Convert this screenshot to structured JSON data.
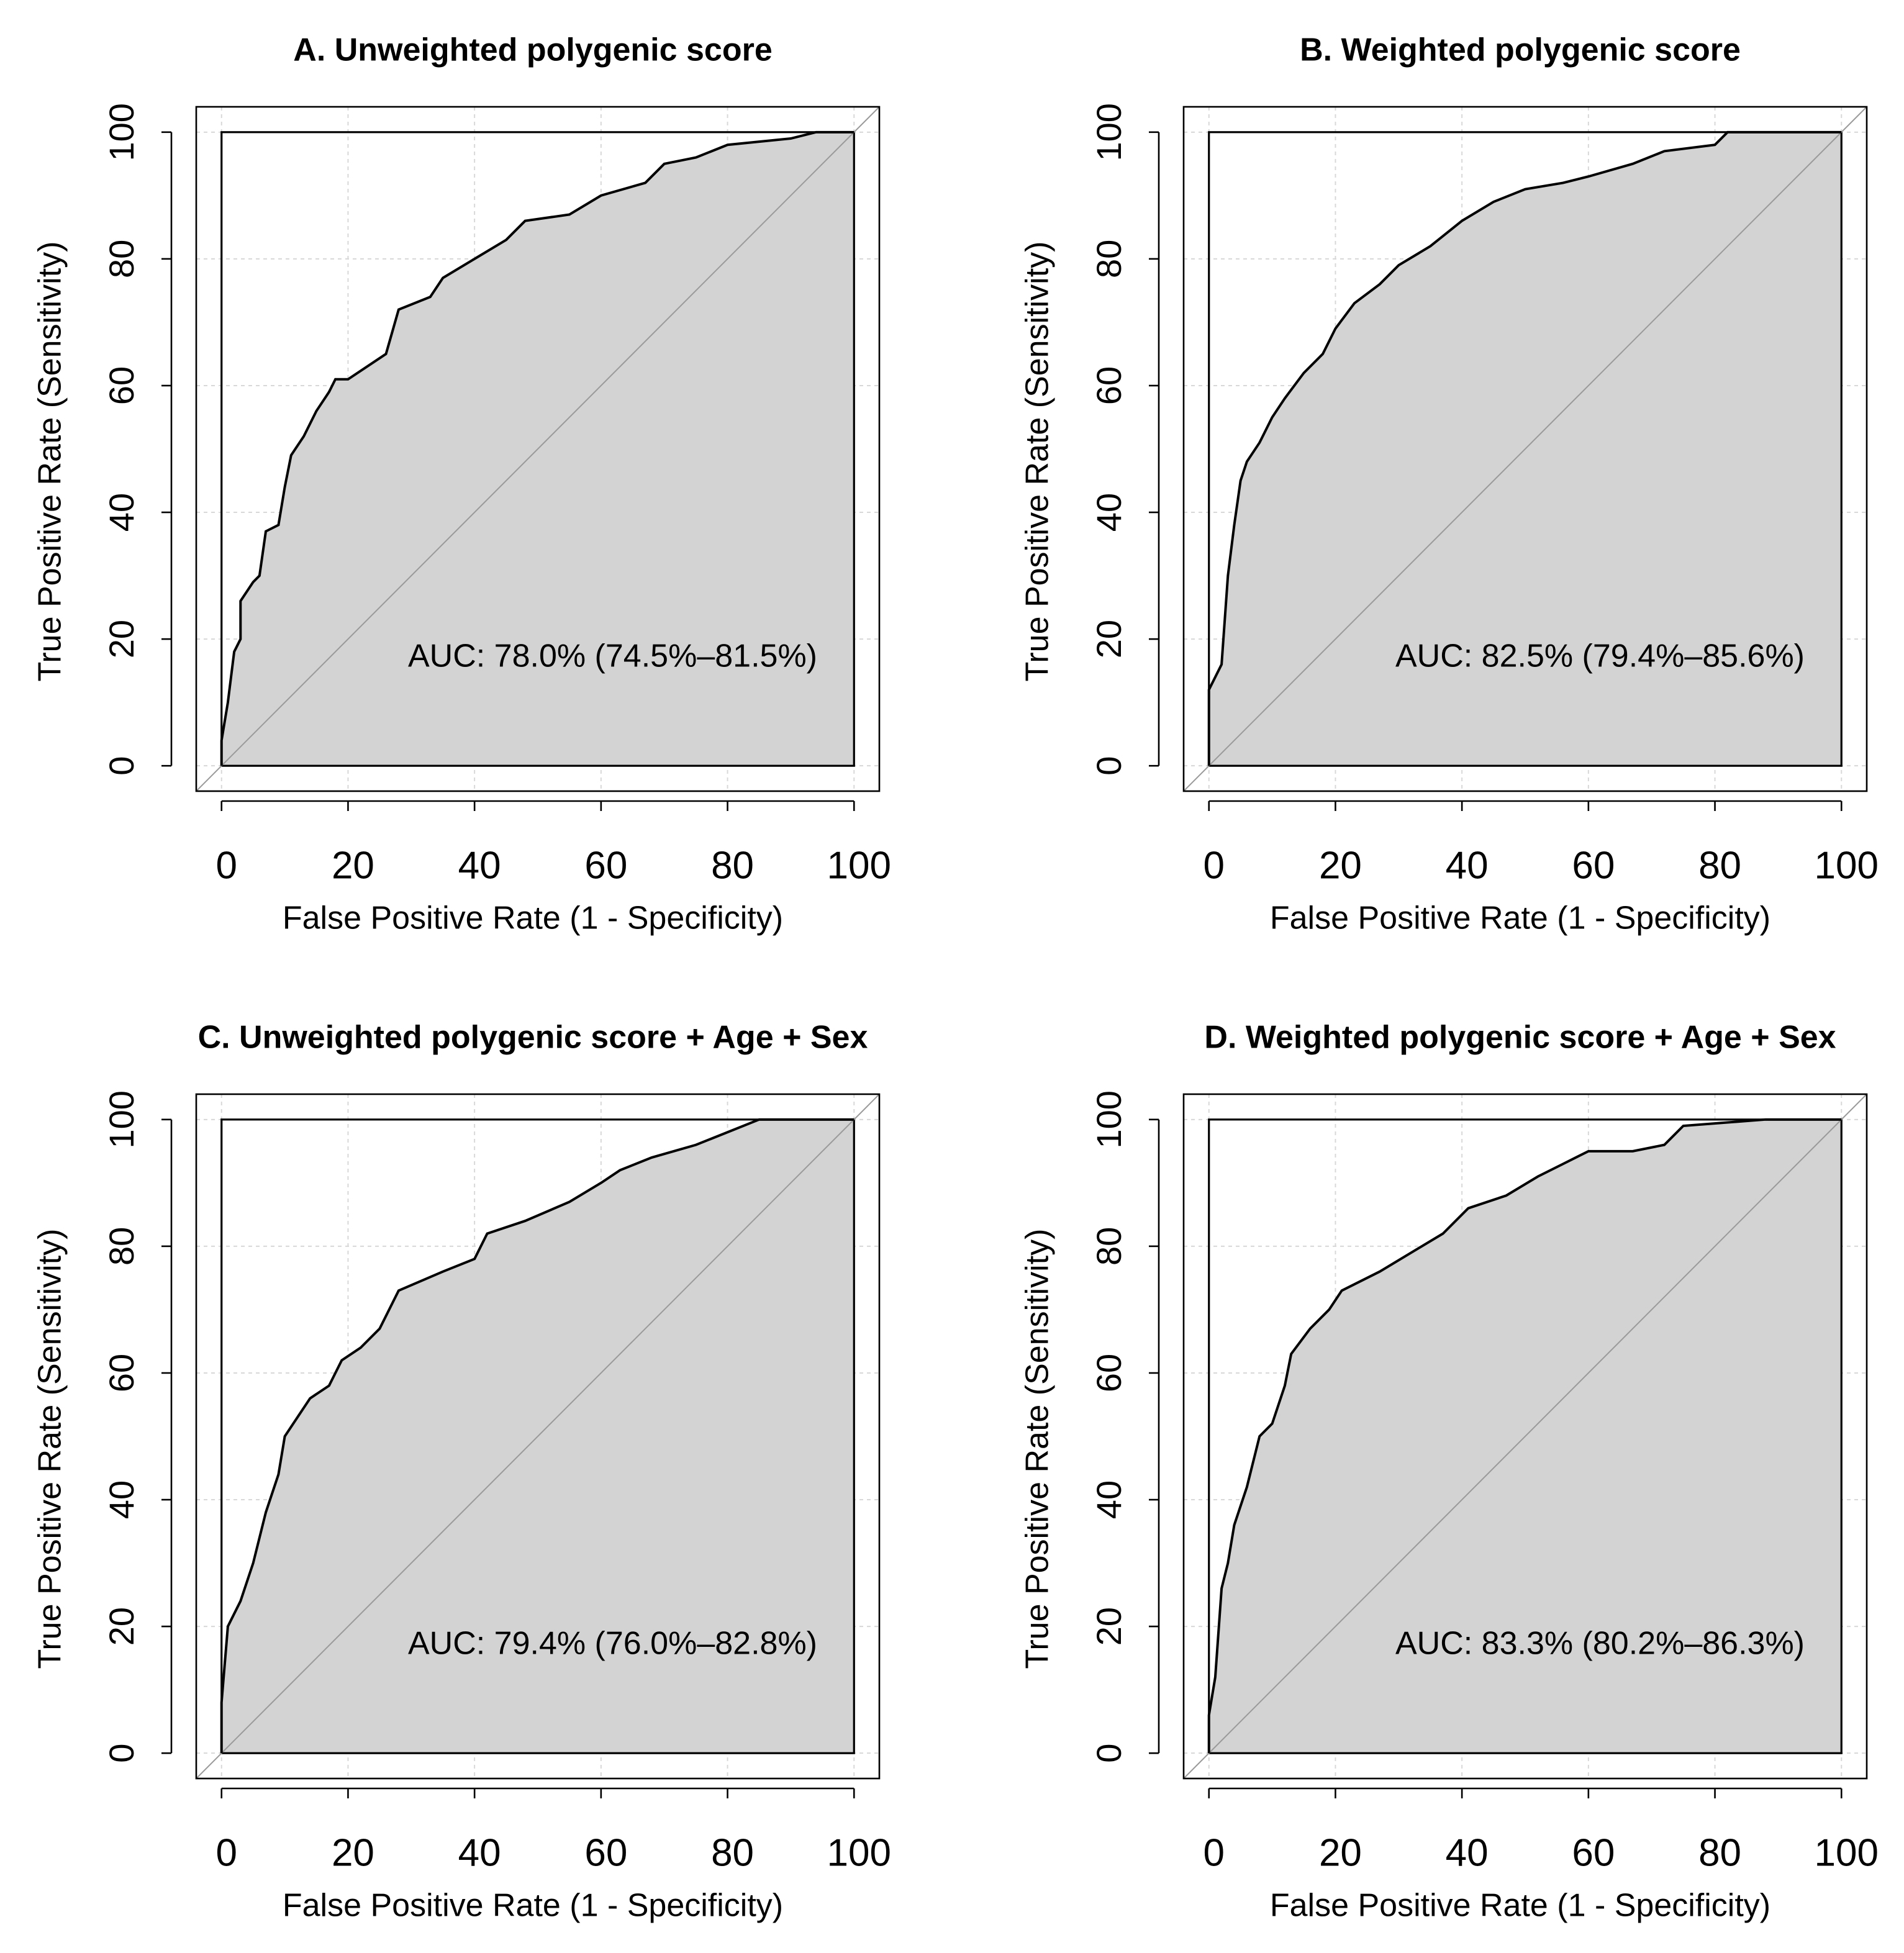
{
  "chart_data": [
    {
      "type": "line",
      "title": "A. Unweighted polygenic score",
      "xlabel": "False Positive Rate (1 - Specificity)",
      "ylabel": "True Positive Rate (Sensitivity)",
      "annotation": "AUC: 78.0% (74.5%–81.5%)",
      "x": [
        0,
        0,
        1,
        2,
        3,
        3,
        5,
        6,
        7,
        9,
        10,
        11,
        13,
        15,
        17,
        18,
        20,
        26,
        28,
        33,
        35,
        40,
        45,
        48,
        55,
        60,
        67,
        70,
        75,
        80,
        90,
        94,
        100
      ],
      "values": [
        0,
        4,
        10,
        18,
        20,
        26,
        29,
        30,
        37,
        38,
        44,
        49,
        52,
        56,
        59,
        61,
        61,
        65,
        72,
        74,
        77,
        80,
        83,
        86,
        87,
        90,
        92,
        95,
        96,
        98,
        99,
        100,
        100
      ],
      "color": "#000000",
      "fill": "#d3d3d3",
      "xlim": [
        -4,
        104
      ],
      "ylim": [
        -4,
        104
      ],
      "xticks": [
        0,
        20,
        40,
        60,
        80,
        100
      ],
      "yticks": [
        0,
        20,
        40,
        60,
        80,
        100
      ],
      "grid": true
    },
    {
      "type": "line",
      "title": "B. Weighted polygenic score",
      "xlabel": "False Positive Rate (1 - Specificity)",
      "ylabel": "True Positive Rate (Sensitivity)",
      "annotation": "AUC: 82.5% (79.4%–85.6%)",
      "x": [
        0,
        0,
        2,
        3,
        4,
        5,
        6,
        8,
        10,
        12,
        15,
        18,
        20,
        23,
        27,
        30,
        35,
        40,
        45,
        50,
        56,
        60,
        67,
        72,
        80,
        82,
        100
      ],
      "values": [
        0,
        12,
        16,
        30,
        38,
        45,
        48,
        51,
        55,
        58,
        62,
        65,
        69,
        73,
        76,
        79,
        82,
        86,
        89,
        91,
        92,
        93,
        95,
        97,
        98,
        100,
        100
      ],
      "color": "#000000",
      "fill": "#d3d3d3",
      "xlim": [
        -4,
        104
      ],
      "ylim": [
        -4,
        104
      ],
      "xticks": [
        0,
        20,
        40,
        60,
        80,
        100
      ],
      "yticks": [
        0,
        20,
        40,
        60,
        80,
        100
      ],
      "grid": true
    },
    {
      "type": "line",
      "title": "C. Unweighted polygenic score + Age + Sex",
      "xlabel": "False Positive Rate (1 - Specificity)",
      "ylabel": "True Positive Rate (Sensitivity)",
      "annotation": "AUC: 79.4% (76.0%–82.8%)",
      "x": [
        0,
        0,
        1,
        3,
        5,
        7,
        9,
        10,
        12,
        14,
        17,
        19,
        22,
        25,
        28,
        35,
        40,
        42,
        48,
        55,
        60,
        63,
        68,
        75,
        80,
        85,
        100
      ],
      "values": [
        0,
        8,
        20,
        24,
        30,
        38,
        44,
        50,
        53,
        56,
        58,
        62,
        64,
        67,
        73,
        76,
        78,
        82,
        84,
        87,
        90,
        92,
        94,
        96,
        98,
        100,
        100
      ],
      "color": "#000000",
      "fill": "#d3d3d3",
      "xlim": [
        -4,
        104
      ],
      "ylim": [
        -4,
        104
      ],
      "xticks": [
        0,
        20,
        40,
        60,
        80,
        100
      ],
      "yticks": [
        0,
        20,
        40,
        60,
        80,
        100
      ],
      "grid": true
    },
    {
      "type": "line",
      "title": "D. Weighted polygenic score + Age + Sex",
      "xlabel": "False Positive Rate (1 - Specificity)",
      "ylabel": "True Positive Rate (Sensitivity)",
      "annotation": "AUC: 83.3% (80.2%–86.3%)",
      "x": [
        0,
        0,
        1,
        2,
        3,
        4,
        6,
        8,
        10,
        12,
        13,
        16,
        19,
        21,
        27,
        32,
        37,
        41,
        47,
        52,
        56,
        60,
        67,
        72,
        73,
        75,
        88,
        100
      ],
      "values": [
        0,
        6,
        12,
        26,
        30,
        36,
        42,
        50,
        52,
        58,
        63,
        67,
        70,
        73,
        76,
        79,
        82,
        86,
        88,
        91,
        93,
        95,
        95,
        96,
        97,
        99,
        100,
        100
      ],
      "color": "#000000",
      "fill": "#d3d3d3",
      "xlim": [
        -4,
        104
      ],
      "ylim": [
        -4,
        104
      ],
      "xticks": [
        0,
        20,
        40,
        60,
        80,
        100
      ],
      "yticks": [
        0,
        20,
        40,
        60,
        80,
        100
      ],
      "grid": true
    }
  ]
}
